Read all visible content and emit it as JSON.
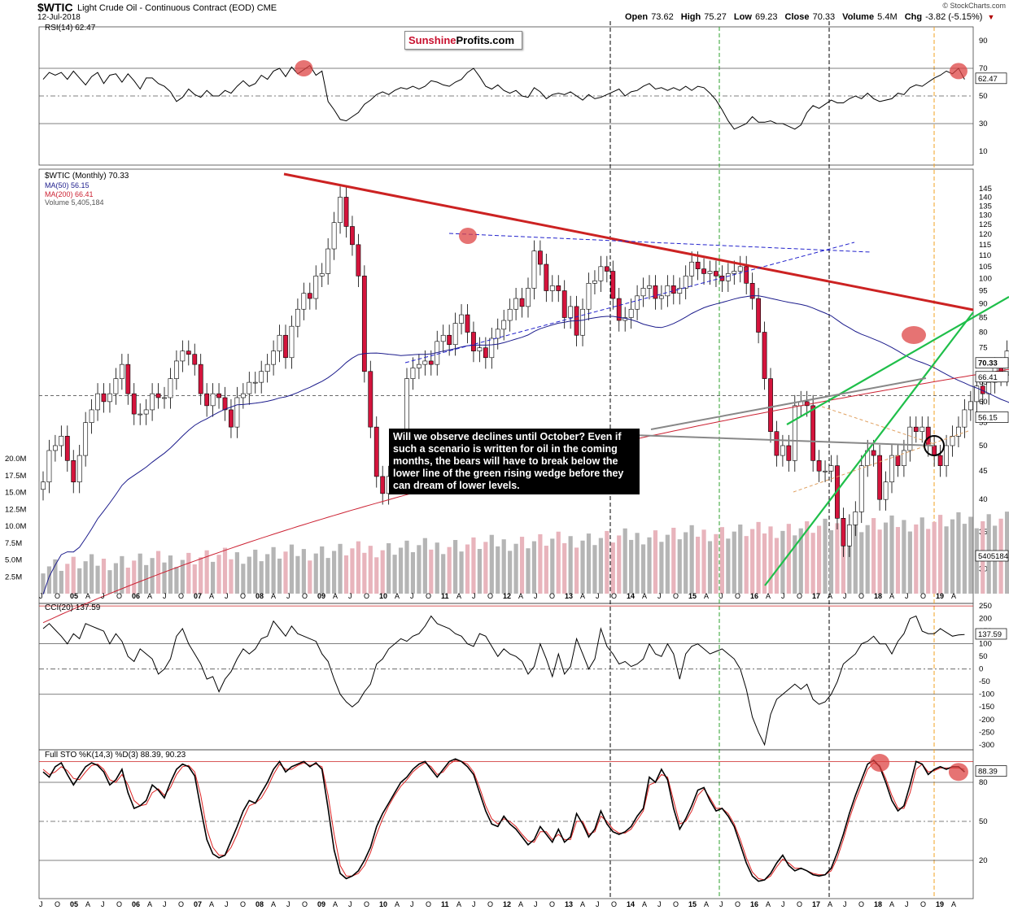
{
  "header": {
    "symbol": "$WTIC",
    "subtitle": "Light Crude Oil - Continuous Contract (EOD) CME",
    "date": "12-Jul-2018",
    "source": "© StockCharts.com",
    "open_label": "Open",
    "open": "73.62",
    "high_label": "High",
    "high": "75.27",
    "low_label": "Low",
    "low": "69.23",
    "close_label": "Close",
    "close": "70.33",
    "volume_label": "Volume",
    "volume": "5.4M",
    "chg_label": "Chg",
    "chg": "-3.82 (-5.15%)",
    "chg_arrow": "▼"
  },
  "logo": {
    "part1": "Sunshine",
    "part2": "Profits.com"
  },
  "annotation": "Will we observe declines until October? Even if such a scenario is written for oil in the coming months, the bears will have to break below the lower line of the green rising wedge before they can dream of lower levels.",
  "colors": {
    "up_candle": "#ffffff",
    "down_candle": "#d4143c",
    "ma50": "#1c1c8c",
    "ma200": "#cc2233",
    "resistance": "#cc2222",
    "wedge": "#1fbf4a",
    "volume_up": "#b5b5b5",
    "volume_down": "#e8b4bc",
    "osc_fill_high": "#5e8a5e",
    "osc_fill_low": "#8a5a5a",
    "stoch_k": "#000000",
    "stoch_d": "#dd2222"
  },
  "chart_data": [
    {
      "type": "line",
      "panel": "rsi",
      "legend": "RSI(14) 62.47",
      "yticks": [
        90,
        70,
        50,
        30,
        10
      ],
      "ylim": [
        0,
        100
      ],
      "current_label": "62.47",
      "values": [
        62,
        67,
        65,
        67,
        62,
        68,
        63,
        58,
        64,
        67,
        59,
        65,
        66,
        60,
        66,
        61,
        55,
        63,
        63,
        59,
        57,
        53,
        46,
        49,
        55,
        51,
        49,
        54,
        50,
        50,
        54,
        52,
        57,
        61,
        57,
        59,
        65,
        62,
        68,
        70,
        64,
        71,
        66,
        69,
        72,
        65,
        68,
        46,
        40,
        33,
        32,
        35,
        38,
        44,
        47,
        51,
        53,
        51,
        54,
        56,
        55,
        57,
        55,
        57,
        61,
        60,
        58,
        57,
        60,
        62,
        67,
        70,
        64,
        57,
        55,
        58,
        54,
        52,
        54,
        50,
        49,
        56,
        53,
        48,
        51,
        52,
        51,
        53,
        50,
        47,
        51,
        48,
        49,
        51,
        53,
        55,
        50,
        53,
        54,
        57,
        59,
        55,
        56,
        54,
        56,
        54,
        57,
        54,
        57,
        56,
        52,
        47,
        40,
        32,
        26,
        28,
        30,
        35,
        31,
        31,
        32,
        30,
        30,
        28,
        26,
        29,
        38,
        43,
        41,
        44,
        47,
        45,
        45,
        48,
        50,
        48,
        52,
        48,
        46,
        47,
        48,
        52,
        51,
        56,
        58,
        57,
        60,
        63,
        65,
        68,
        66,
        70,
        62
      ],
      "markers": [
        {
          "index": 43,
          "value": 70
        },
        {
          "index": 151,
          "value": 68
        }
      ]
    },
    {
      "type": "candlestick",
      "panel": "price",
      "legend": [
        "$WTIC (Monthly) 70.33",
        "MA(50) 56.15",
        "MA(200) 66.41",
        "Volume 5,405,184"
      ],
      "yscale": "log",
      "yticks": [
        145,
        140,
        135,
        130,
        125,
        120,
        115,
        110,
        105,
        100,
        95,
        90,
        85,
        80,
        75,
        70,
        65,
        60,
        55,
        50,
        45,
        40,
        35,
        30
      ],
      "ylim": [
        26,
        150
      ],
      "right_labels": [
        "70.33",
        "66.41",
        "56.15",
        "5405184"
      ],
      "volume_ticks": [
        "20.0M",
        "17.5M",
        "15.0M",
        "12.5M",
        "10.0M",
        "7.5M",
        "5.0M",
        "2.5M"
      ],
      "volume_ylim": [
        0,
        21000000
      ],
      "x_labels": [
        "J",
        "O",
        "05",
        "A",
        "J",
        "O",
        "06",
        "A",
        "J",
        "O",
        "07",
        "A",
        "J",
        "O",
        "08",
        "A",
        "J",
        "O",
        "09",
        "A",
        "J",
        "O",
        "10",
        "A",
        "J",
        "O",
        "11",
        "A",
        "J",
        "O",
        "12",
        "A",
        "J",
        "O",
        "13",
        "A",
        "J",
        "O",
        "14",
        "A",
        "J",
        "O",
        "15",
        "A",
        "J",
        "O",
        "16",
        "A",
        "J",
        "O",
        "17",
        "A",
        "J",
        "O",
        "18",
        "A",
        "J",
        "O",
        "19",
        "A"
      ],
      "close": [
        43,
        49,
        50,
        52,
        47,
        43,
        48,
        55,
        58,
        62,
        60,
        62,
        66,
        70,
        62,
        57,
        57,
        58,
        62,
        61,
        61,
        66,
        71,
        74,
        73,
        70,
        62,
        59,
        62,
        61,
        58,
        54,
        61,
        62,
        65,
        65,
        68,
        70,
        74,
        79,
        72,
        82,
        88,
        94,
        92,
        101,
        102,
        113,
        126,
        140,
        124,
        115,
        101,
        68,
        54,
        44,
        41,
        44,
        49,
        51,
        66,
        69,
        70,
        71,
        70,
        77,
        79,
        76,
        83,
        86,
        80,
        74,
        75,
        72,
        78,
        81,
        84,
        88,
        92,
        89,
        96,
        112,
        106,
        95,
        97,
        95,
        85,
        89,
        79,
        88,
        98,
        99,
        105,
        103,
        92,
        84,
        85,
        88,
        93,
        96,
        97,
        92,
        93,
        97,
        94,
        96,
        101,
        107,
        104,
        102,
        103,
        101,
        99,
        102,
        103,
        105,
        98,
        92,
        80,
        66,
        53,
        48,
        50,
        47,
        59,
        60,
        59,
        47,
        45,
        45,
        46,
        37,
        33,
        36,
        38,
        46,
        49,
        48,
        40,
        43,
        48,
        46,
        49,
        54,
        53,
        54,
        50,
        48,
        46,
        50,
        52,
        54,
        58,
        60,
        64,
        62,
        65,
        69,
        67,
        74,
        70
      ]
    },
    {
      "type": "line",
      "panel": "cci",
      "legend": "CCI(20) 137.59",
      "yticks": [
        250,
        200,
        150,
        100,
        50,
        0,
        -50,
        -100,
        -150,
        -200,
        -250,
        -300
      ],
      "ylim": [
        -320,
        260
      ],
      "current_label": "137.59",
      "values": [
        160,
        180,
        155,
        130,
        100,
        140,
        120,
        180,
        170,
        160,
        150,
        100,
        140,
        110,
        50,
        30,
        80,
        60,
        40,
        -20,
        0,
        40,
        130,
        160,
        100,
        60,
        20,
        -40,
        -30,
        -90,
        -40,
        -10,
        40,
        80,
        60,
        80,
        120,
        130,
        190,
        160,
        130,
        170,
        140,
        130,
        120,
        110,
        60,
        30,
        -40,
        -100,
        -130,
        -150,
        -130,
        -90,
        -60,
        20,
        40,
        80,
        100,
        120,
        110,
        130,
        140,
        170,
        210,
        180,
        170,
        160,
        140,
        130,
        100,
        90,
        140,
        130,
        90,
        50,
        80,
        60,
        50,
        30,
        -20,
        10,
        100,
        40,
        -30,
        60,
        -20,
        10,
        120,
        60,
        0,
        40,
        160,
        90,
        60,
        20,
        30,
        10,
        20,
        40,
        100,
        60,
        50,
        100,
        60,
        -40,
        60,
        90,
        100,
        80,
        60,
        70,
        80,
        60,
        40,
        0,
        -80,
        -190,
        -250,
        -300,
        -180,
        -120,
        -100,
        -80,
        -60,
        -80,
        -60,
        -120,
        -140,
        -130,
        -100,
        -50,
        20,
        40,
        60,
        100,
        110,
        130,
        100,
        100,
        60,
        110,
        140,
        200,
        210,
        150,
        140,
        140,
        160,
        145,
        130,
        135,
        137
      ]
    },
    {
      "type": "line",
      "panel": "stochastic",
      "legend": "Full STO %K(14,3) %D(3) 88.39, 90.23",
      "yticks": [
        80,
        50,
        20
      ],
      "ylim": [
        0,
        100
      ],
      "current_label": "88.39",
      "series": [
        {
          "name": "%K(14,3)",
          "values": [
            88,
            84,
            92,
            95,
            86,
            78,
            85,
            92,
            95,
            93,
            88,
            78,
            82,
            90,
            72,
            60,
            62,
            66,
            78,
            74,
            68,
            80,
            90,
            94,
            92,
            85,
            60,
            36,
            25,
            22,
            24,
            35,
            46,
            58,
            66,
            64,
            72,
            80,
            90,
            96,
            88,
            92,
            94,
            96,
            92,
            95,
            90,
            60,
            28,
            10,
            6,
            8,
            12,
            20,
            30,
            46,
            56,
            64,
            72,
            80,
            84,
            90,
            94,
            96,
            90,
            84,
            90,
            96,
            98,
            96,
            92,
            86,
            72,
            58,
            48,
            46,
            54,
            48,
            44,
            38,
            32,
            36,
            46,
            40,
            34,
            44,
            34,
            38,
            56,
            48,
            38,
            44,
            58,
            48,
            42,
            40,
            42,
            46,
            54,
            60,
            84,
            80,
            90,
            82,
            60,
            44,
            52,
            62,
            74,
            76,
            66,
            58,
            60,
            54,
            46,
            32,
            18,
            8,
            4,
            5,
            10,
            18,
            24,
            16,
            12,
            14,
            12,
            9,
            8,
            9,
            14,
            26,
            40,
            56,
            70,
            82,
            94,
            97,
            92,
            80,
            66,
            58,
            62,
            78,
            96,
            94,
            86,
            90,
            92,
            90,
            92,
            92,
            88
          ]
        },
        {
          "name": "%D(3)",
          "values": [
            90,
            86,
            88,
            92,
            89,
            83,
            82,
            88,
            93,
            94,
            90,
            82,
            80,
            86,
            78,
            66,
            62,
            63,
            72,
            75,
            70,
            76,
            86,
            92,
            93,
            88,
            70,
            44,
            30,
            24,
            24,
            30,
            40,
            52,
            62,
            64,
            68,
            76,
            86,
            94,
            90,
            90,
            93,
            95,
            93,
            94,
            92,
            70,
            40,
            16,
            8,
            8,
            10,
            16,
            26,
            40,
            52,
            62,
            70,
            77,
            82,
            88,
            92,
            95,
            92,
            86,
            88,
            94,
            97,
            96,
            94,
            88,
            76,
            62,
            52,
            48,
            52,
            50,
            46,
            40,
            35,
            34,
            42,
            42,
            36,
            40,
            36,
            36,
            50,
            50,
            40,
            42,
            54,
            50,
            44,
            41,
            41,
            44,
            51,
            58,
            78,
            80,
            86,
            84,
            66,
            48,
            50,
            58,
            70,
            75,
            68,
            60,
            60,
            56,
            48,
            36,
            22,
            11,
            6,
            5,
            8,
            15,
            21,
            18,
            14,
            14,
            12,
            10,
            9,
            9,
            12,
            22,
            36,
            52,
            66,
            78,
            90,
            95,
            93,
            83,
            70,
            60,
            60,
            72,
            90,
            94,
            88,
            89,
            91,
            91,
            91,
            91,
            90
          ]
        }
      ],
      "markers": [
        {
          "index": 138,
          "value": 95
        },
        {
          "index": 151,
          "value": 88
        }
      ]
    }
  ]
}
